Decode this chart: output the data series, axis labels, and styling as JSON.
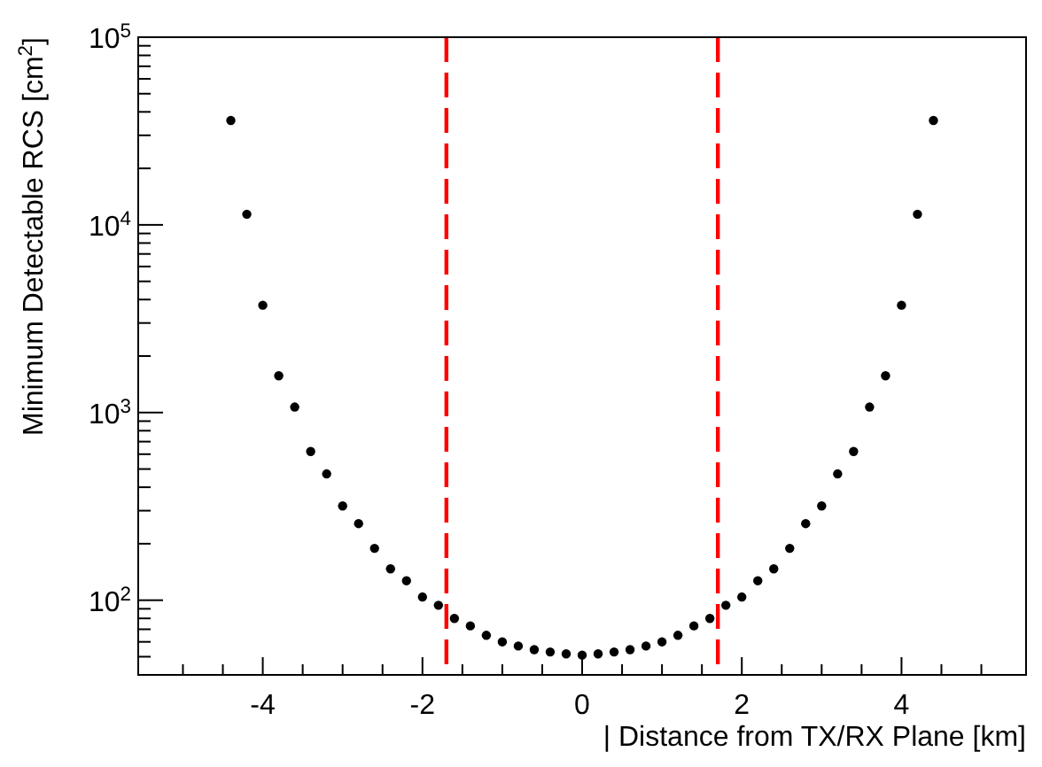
{
  "chart_data": {
    "type": "scatter",
    "xlabel": "| Distance from TX/RX Plane [km]",
    "ylabel": "Minimum Detectable RCS [cm$^{2}$]",
    "x": [
      -4.4,
      -4.2,
      -4.0,
      -3.8,
      -3.6,
      -3.4,
      -3.2,
      -3.0,
      -2.8,
      -2.6,
      -2.4,
      -2.2,
      -2.0,
      -1.8,
      -1.6,
      -1.4,
      -1.2,
      -1.0,
      -0.8,
      -0.6,
      -0.4,
      -0.2,
      0,
      0.2,
      0.4,
      0.6,
      0.8,
      1.0,
      1.2,
      1.4,
      1.6,
      1.8,
      2.0,
      2.2,
      2.4,
      2.6,
      2.8,
      3.0,
      3.2,
      3.4,
      3.6,
      3.8,
      4.0,
      4.2,
      4.4
    ],
    "series": [
      {
        "color": "#000000",
        "values": [
          36000,
          11400,
          3730,
          1570,
          1070,
          620,
          471,
          318,
          256,
          189,
          147,
          127,
          104,
          94,
          80,
          73,
          65,
          60,
          57,
          54.5,
          53,
          51.8,
          51,
          51.8,
          53,
          54.5,
          57,
          60,
          65,
          73,
          80,
          94,
          104,
          127,
          147,
          189,
          256,
          318,
          471,
          620,
          1070,
          1570,
          3730,
          11400,
          36000
        ]
      }
    ],
    "marker": "circle",
    "log": "y",
    "xlim": [
      -5.56,
      5.56
    ],
    "xticks": [
      {
        "value": -5,
        "label": null
      },
      {
        "value": -4.5,
        "label": null
      },
      -4,
      {
        "value": -3.5,
        "label": null
      },
      {
        "value": -3,
        "label": null
      },
      {
        "value": -2.5,
        "label": null
      },
      -2,
      {
        "value": -1.5,
        "label": null
      },
      {
        "value": -1,
        "label": null
      },
      {
        "value": -0.5,
        "label": null
      },
      0,
      {
        "value": 0.5,
        "label": null
      },
      {
        "value": 1,
        "label": null
      },
      {
        "value": 1.5,
        "label": null
      },
      2,
      {
        "value": 2.5,
        "label": null
      },
      {
        "value": 3,
        "label": null
      },
      {
        "value": 3.5,
        "label": null
      },
      4,
      {
        "value": 4.5,
        "label": null
      },
      {
        "value": 5,
        "label": null
      }
    ],
    "ylim": [
      40,
      100000
    ],
    "yticks": [
      {
        "value": 50,
        "label": null
      },
      {
        "value": 60,
        "label": null
      },
      {
        "value": 70,
        "label": null
      },
      {
        "value": 80,
        "label": null
      },
      {
        "value": 90,
        "label": null
      },
      {
        "value": 100,
        "label": "10$^{2}$"
      },
      {
        "value": 200,
        "label": null
      },
      {
        "value": 300,
        "label": null
      },
      {
        "value": 400,
        "label": null
      },
      {
        "value": 500,
        "label": null
      },
      {
        "value": 600,
        "label": null
      },
      {
        "value": 700,
        "label": null
      },
      {
        "value": 800,
        "label": null
      },
      {
        "value": 900,
        "label": null
      },
      {
        "value": 1000,
        "label": "10$^{3}$"
      },
      {
        "value": 2000,
        "label": null
      },
      {
        "value": 3000,
        "label": null
      },
      {
        "value": 4000,
        "label": null
      },
      {
        "value": 5000,
        "label": null
      },
      {
        "value": 6000,
        "label": null
      },
      {
        "value": 7000,
        "label": null
      },
      {
        "value": 8000,
        "label": null
      },
      {
        "value": 9000,
        "label": null
      },
      {
        "value": 10000,
        "label": "10$^{4}$"
      },
      {
        "value": 20000,
        "label": null
      },
      {
        "value": 30000,
        "label": null
      },
      {
        "value": 40000,
        "label": null
      },
      {
        "value": 50000,
        "label": null
      },
      {
        "value": 60000,
        "label": null
      },
      {
        "value": 70000,
        "label": null
      },
      {
        "value": 80000,
        "label": null
      },
      {
        "value": 90000,
        "label": null
      },
      {
        "value": 100000,
        "label": "10$^{5}$"
      }
    ],
    "ref_lines": [
      {
        "axis": "x",
        "value": -1.7,
        "color": "#ff0000",
        "line_style": "dashed"
      },
      {
        "axis": "x",
        "value": 1.7,
        "color": "#ff0000",
        "line_style": "dashed"
      }
    ],
    "grid": false
  }
}
